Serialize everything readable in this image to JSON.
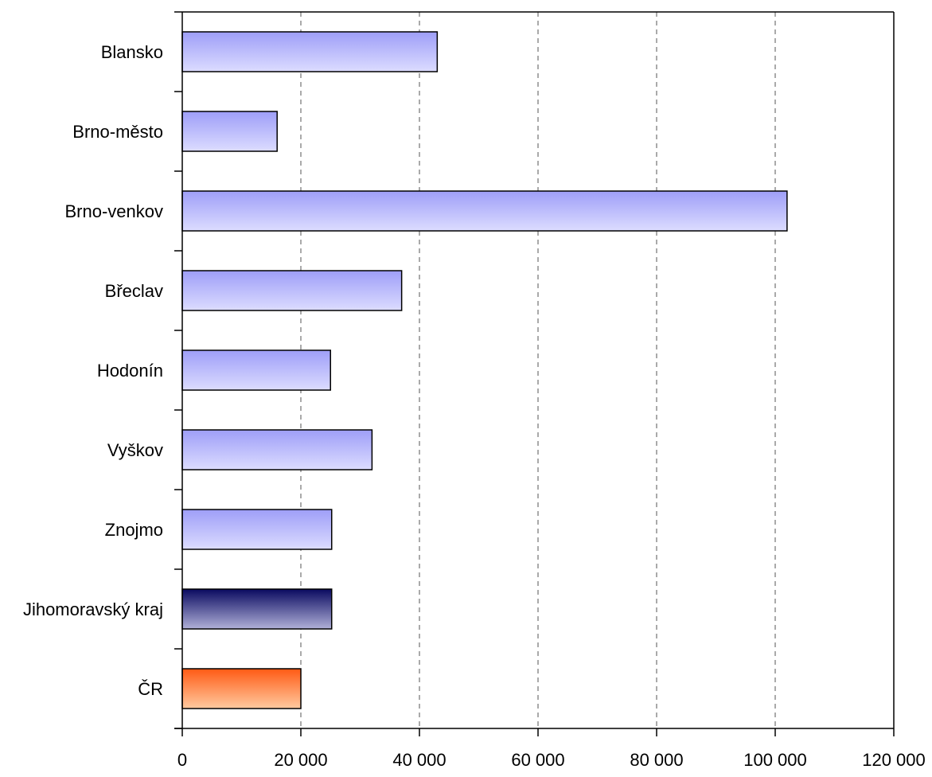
{
  "chart_data": {
    "type": "bar",
    "orientation": "horizontal",
    "categories": [
      "Blansko",
      "Brno-město",
      "Brno-venkov",
      "Břeclav",
      "Hodonín",
      "Vyškov",
      "Znojmo",
      "Jihomoravský kraj",
      "ČR"
    ],
    "values": [
      43000,
      16000,
      102000,
      37000,
      25000,
      32000,
      25200,
      25200,
      20000
    ],
    "xlim": [
      0,
      120000
    ],
    "xticks": [
      0,
      20000,
      40000,
      60000,
      80000,
      100000,
      120000
    ],
    "xtick_labels": [
      "0",
      "20 000",
      "40 000",
      "60 000",
      "80 000",
      "100 000",
      "120 000"
    ],
    "grid": "vertical dashed",
    "colors": {
      "district": [
        "#9e9ef8",
        "#dcdcff"
      ],
      "region": [
        "#0a0a60",
        "#b0b0d8"
      ],
      "country": [
        "#ff5a14",
        "#ffcaa0"
      ]
    },
    "bar_styles": [
      "district",
      "district",
      "district",
      "district",
      "district",
      "district",
      "district",
      "region",
      "country"
    ]
  }
}
